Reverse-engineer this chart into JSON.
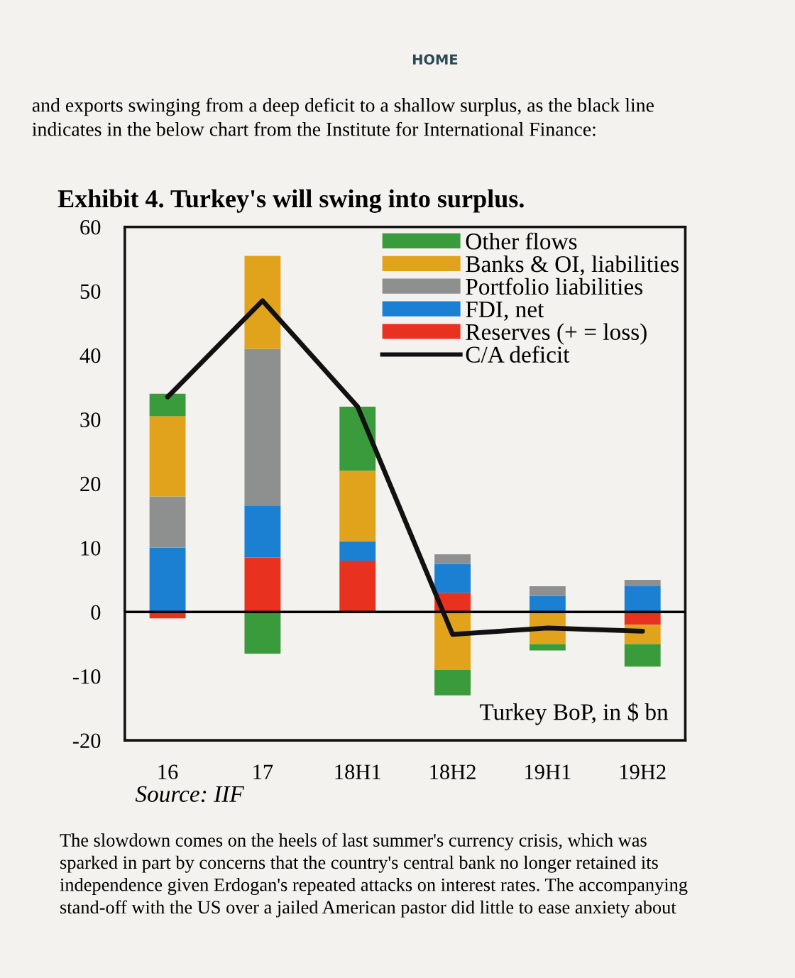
{
  "chart_data": {
    "type": "bar",
    "stacked": true,
    "title": "Exhibit 4. Turkey's will swing into surplus.",
    "categories": [
      "16",
      "17",
      "18H1",
      "18H2",
      "19H1",
      "19H2"
    ],
    "series": [
      {
        "name": "Reserves (+ = loss)",
        "color": "#e8321f",
        "values": [
          -1,
          8.5,
          8,
          3,
          0,
          -2
        ]
      },
      {
        "name": "FDI, net",
        "color": "#1b80d2",
        "values": [
          10,
          8,
          3,
          4.5,
          2.5,
          4
        ]
      },
      {
        "name": "Portfolio liabilities",
        "color": "#8e9090",
        "values": [
          8,
          24.5,
          0,
          1.5,
          1.5,
          1
        ]
      },
      {
        "name": "Banks & OI, liabilities",
        "color": "#e2a31c",
        "values": [
          12.5,
          14.5,
          11,
          -9,
          -5,
          -3
        ]
      },
      {
        "name": "Other flows",
        "color": "#3a9b3c",
        "values": [
          3.5,
          -6.5,
          10,
          -4,
          -1,
          -3.5
        ]
      },
      {
        "name": "C/A deficit",
        "type": "line",
        "color": "#111111",
        "values": [
          33.5,
          48.5,
          32,
          -3.5,
          -2.5,
          -3
        ]
      }
    ],
    "ylim": [
      -20,
      60
    ],
    "yticks": [
      -20,
      -10,
      0,
      10,
      20,
      30,
      40,
      50,
      60
    ],
    "ref_lines": [
      {
        "axis": "y",
        "value": 0
      }
    ],
    "legend": "top right",
    "annotations": [
      "Turkey BoP, in $ bn",
      "Source: IIF",
      "HOME",
      "and exports swinging from a deep deficit to a shallow surplus, as the black line\nindicates in the below chart from the Institute for International Finance:",
      "The slowdown comes on the heels of last summer's currency crisis, which was\nsparked in part by concerns that the country's central bank no longer retained its\nindependence given Erdogan's repeated attacks on interest rates. The accompanying\nstand-off with the US over a jailed American pastor did little to ease anxiety about"
    ]
  }
}
